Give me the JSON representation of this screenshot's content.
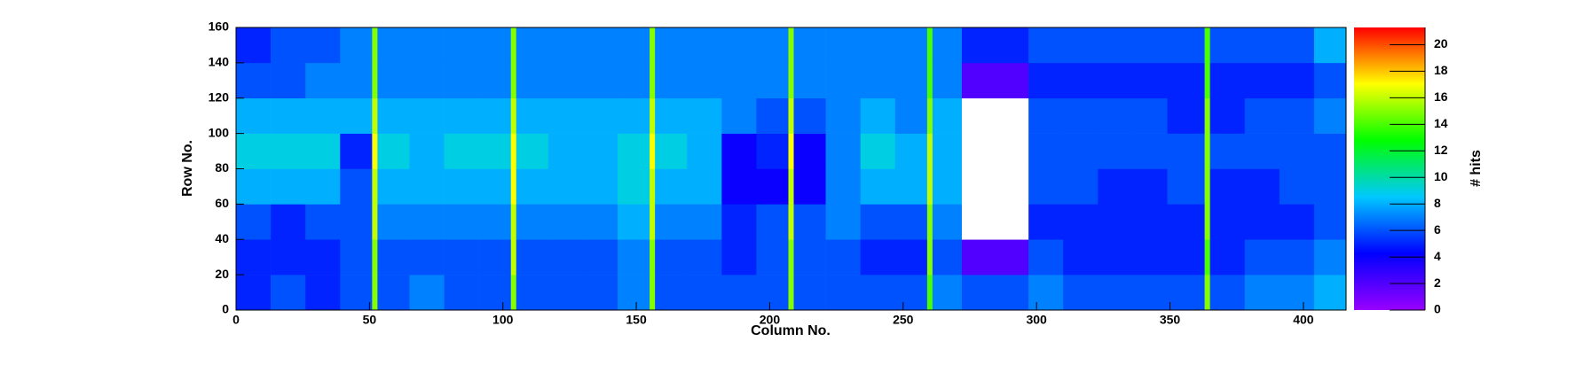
{
  "chart_data": {
    "type": "heatmap",
    "x_label": "Column No.",
    "y_label": "Row No.",
    "z_label": "# hits",
    "x_bins": [
      0,
      13,
      26,
      39,
      51,
      53,
      65,
      78,
      91,
      103,
      105,
      117,
      130,
      143,
      155,
      157,
      169,
      182,
      195,
      207,
      209,
      221,
      234,
      247,
      259,
      261,
      272,
      297,
      310,
      323,
      336,
      349,
      363,
      365,
      378,
      391,
      404,
      416
    ],
    "y_bins": [
      0,
      20,
      40,
      60,
      80,
      100,
      120,
      140,
      160
    ],
    "z": [
      [
        5,
        6,
        5,
        6,
        15,
        6,
        7,
        6,
        6,
        15,
        6,
        6,
        6,
        7,
        15,
        6,
        6,
        6,
        6,
        15,
        6,
        6,
        6,
        6,
        14,
        7,
        6,
        7,
        6,
        6,
        6,
        6,
        15,
        6,
        7,
        7,
        8
      ],
      [
        5,
        5,
        5,
        6,
        15,
        6,
        6,
        6,
        6,
        16,
        6,
        6,
        6,
        7,
        15,
        6,
        6,
        5,
        6,
        15,
        6,
        6,
        5,
        5,
        15,
        6,
        2,
        6,
        5,
        5,
        5,
        5,
        14,
        5,
        6,
        6,
        7
      ],
      [
        6,
        5,
        6,
        6,
        16,
        7,
        7,
        7,
        7,
        16,
        7,
        7,
        7,
        8,
        16,
        7,
        7,
        5,
        6,
        16,
        6,
        7,
        6,
        6,
        15,
        7,
        0,
        5,
        5,
        5,
        5,
        5,
        15,
        5,
        5,
        5,
        6
      ],
      [
        8,
        8,
        8,
        6,
        16,
        8,
        8,
        8,
        8,
        17,
        8,
        8,
        8,
        9,
        16,
        8,
        8,
        4,
        4,
        16,
        4,
        7,
        8,
        8,
        16,
        8,
        0,
        6,
        6,
        5,
        5,
        6,
        15,
        5,
        5,
        6,
        6
      ],
      [
        9,
        9,
        9,
        5,
        17,
        9,
        8,
        9,
        9,
        17,
        9,
        8,
        8,
        9,
        17,
        9,
        8,
        4,
        5,
        17,
        4,
        7,
        9,
        8,
        16,
        8,
        0,
        6,
        6,
        6,
        6,
        6,
        15,
        6,
        6,
        6,
        6
      ],
      [
        8,
        8,
        8,
        8,
        16,
        8,
        8,
        8,
        8,
        16,
        8,
        8,
        8,
        8,
        16,
        8,
        8,
        7,
        6,
        16,
        6,
        7,
        8,
        7,
        15,
        8,
        0,
        6,
        6,
        6,
        6,
        5,
        15,
        5,
        6,
        6,
        7
      ],
      [
        6,
        6,
        7,
        7,
        15,
        7,
        7,
        7,
        7,
        15,
        7,
        7,
        7,
        7,
        15,
        7,
        7,
        7,
        7,
        15,
        7,
        7,
        7,
        7,
        14,
        7,
        2,
        5,
        5,
        5,
        5,
        5,
        14,
        5,
        5,
        5,
        6
      ],
      [
        5,
        6,
        6,
        7,
        15,
        7,
        7,
        7,
        7,
        15,
        7,
        7,
        7,
        7,
        15,
        7,
        7,
        7,
        7,
        15,
        7,
        7,
        7,
        7,
        14,
        7,
        5,
        6,
        6,
        6,
        6,
        6,
        14,
        6,
        6,
        6,
        8
      ]
    ],
    "xlim": [
      0,
      416
    ],
    "xticks": [
      0,
      50,
      100,
      150,
      200,
      250,
      300,
      350,
      400
    ],
    "ylim": [
      0,
      160
    ],
    "yticks": [
      0,
      20,
      40,
      60,
      80,
      100,
      120,
      140,
      160
    ],
    "zlim": [
      0,
      21.3
    ],
    "zticks": [
      0,
      2,
      4,
      6,
      8,
      10,
      12,
      14,
      16,
      18,
      20
    ],
    "colorscale": [
      "#9900ff",
      "#0000ff",
      "#00c8ff",
      "#00ff00",
      "#ffff00",
      "#ff0000"
    ],
    "empty_color": "#ffffff"
  }
}
